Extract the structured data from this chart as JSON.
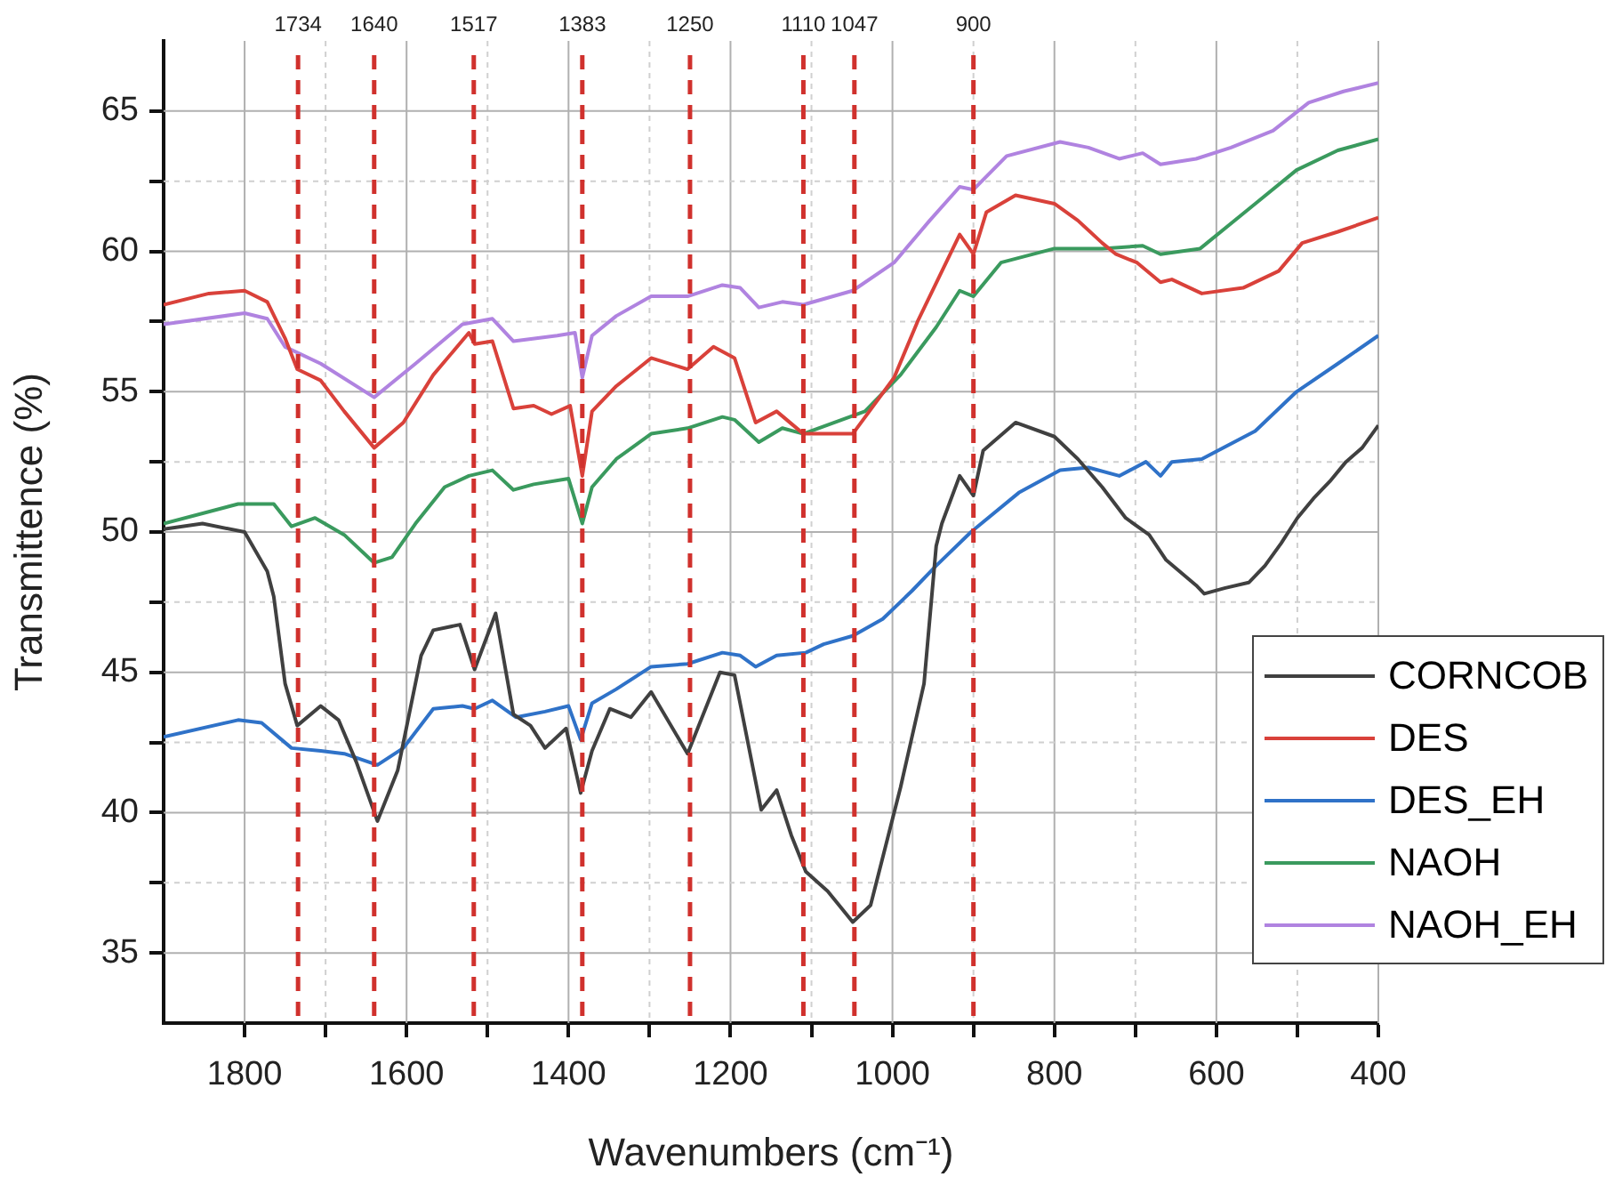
{
  "chart_data": {
    "type": "line",
    "xlabel": "Wavenumbers (cm⁻¹)",
    "ylabel": "Transmittence (%)",
    "xlim": [
      1900,
      400
    ],
    "ylim": [
      32.5,
      67.5
    ],
    "xticks": [
      1800,
      {
        "value": 1700,
        "label": null
      },
      1600,
      {
        "value": 1500,
        "label": null
      },
      1400,
      {
        "value": 1300,
        "label": null
      },
      1200,
      {
        "value": 1100,
        "label": null
      },
      1000,
      {
        "value": 900,
        "label": null
      },
      800,
      {
        "value": 700,
        "label": null
      },
      600,
      {
        "value": 500,
        "label": null
      },
      400
    ],
    "yticks": [
      35,
      {
        "value": 37.5,
        "label": null
      },
      40,
      {
        "value": 42.5,
        "label": null
      },
      45,
      {
        "value": 47.5,
        "label": null
      },
      50,
      {
        "value": 52.5,
        "label": null
      },
      55,
      {
        "value": 57.5,
        "label": null
      },
      60,
      {
        "value": 62.5,
        "label": null
      },
      65
    ],
    "grid": true,
    "legend": "bottom right",
    "line_style": "solid",
    "ref_lines": [
      {
        "axis": "x",
        "value": 1734,
        "label": "1734",
        "color": "#d0312d",
        "line_style": "dashed"
      },
      {
        "axis": "x",
        "value": 1640,
        "label": "1640",
        "color": "#d0312d",
        "line_style": "dashed"
      },
      {
        "axis": "x",
        "value": 1517,
        "label": "1517",
        "color": "#d0312d",
        "line_style": "dashed"
      },
      {
        "axis": "x",
        "value": 1383,
        "label": "1383",
        "color": "#d0312d",
        "line_style": "dashed"
      },
      {
        "axis": "x",
        "value": 1250,
        "label": "1250",
        "color": "#d0312d",
        "line_style": "dashed"
      },
      {
        "axis": "x",
        "value": 1110,
        "label": "1110",
        "color": "#d0312d",
        "line_style": "dashed"
      },
      {
        "axis": "x",
        "value": 1047,
        "label": "1047",
        "color": "#d0312d",
        "line_style": "dashed"
      },
      {
        "axis": "x",
        "value": 900,
        "label": "900",
        "color": "#d0312d",
        "line_style": "dashed"
      }
    ],
    "series": [
      {
        "name": "CORNCOB",
        "color": "#404040",
        "x": [
          1900,
          1852,
          1800,
          1772,
          1764,
          1750,
          1735,
          1706,
          1684,
          1662,
          1636,
          1618,
          1611,
          1582,
          1567,
          1534,
          1516,
          1490,
          1468,
          1447,
          1429,
          1403,
          1385,
          1371,
          1349,
          1323,
          1298,
          1253,
          1213,
          1195,
          1162,
          1143,
          1125,
          1107,
          1080,
          1049,
          1027,
          990,
          961,
          946,
          939,
          917,
          900,
          888,
          848,
          800,
          771,
          741,
          712,
          683,
          662,
          625,
          615,
          590,
          560,
          540,
          520,
          500,
          480,
          460,
          440,
          420,
          400
        ],
        "values": [
          50.1,
          50.3,
          50.0,
          48.6,
          47.7,
          44.6,
          43.1,
          43.8,
          43.3,
          41.8,
          39.7,
          41.0,
          41.5,
          45.6,
          46.5,
          46.7,
          45.1,
          47.1,
          43.5,
          43.1,
          42.3,
          43.0,
          40.7,
          42.2,
          43.7,
          43.4,
          44.3,
          42.1,
          45.0,
          44.9,
          40.1,
          40.8,
          39.2,
          37.9,
          37.2,
          36.1,
          36.7,
          40.9,
          44.6,
          49.5,
          50.3,
          52.0,
          51.3,
          52.9,
          53.9,
          53.4,
          52.6,
          51.6,
          50.5,
          49.9,
          49.0,
          48.1,
          47.8,
          48.0,
          48.2,
          48.8,
          49.6,
          50.5,
          51.2,
          51.8,
          52.5,
          53.0,
          53.8
        ]
      },
      {
        "name": "DES",
        "color": "#d9413a",
        "x": [
          1900,
          1844,
          1800,
          1772,
          1750,
          1735,
          1706,
          1677,
          1640,
          1604,
          1567,
          1523,
          1516,
          1494,
          1468,
          1443,
          1421,
          1398,
          1383,
          1371,
          1341,
          1298,
          1253,
          1221,
          1195,
          1169,
          1143,
          1110,
          1049,
          998,
          969,
          917,
          900,
          884,
          848,
          800,
          771,
          741,
          724,
          698,
          669,
          655,
          618,
          567,
          523,
          494,
          450,
          400
        ],
        "values": [
          58.1,
          58.5,
          58.6,
          58.2,
          56.9,
          55.8,
          55.4,
          54.3,
          53.0,
          53.9,
          55.6,
          57.1,
          56.7,
          56.8,
          54.4,
          54.5,
          54.2,
          54.5,
          52.0,
          54.3,
          55.2,
          56.2,
          55.8,
          56.6,
          56.2,
          53.9,
          54.3,
          53.5,
          53.5,
          55.5,
          57.5,
          60.6,
          59.9,
          61.4,
          62.0,
          61.7,
          61.1,
          60.3,
          59.9,
          59.6,
          58.9,
          59.0,
          58.5,
          58.7,
          59.3,
          60.3,
          60.7,
          61.2
        ]
      },
      {
        "name": "DES_EH",
        "color": "#2f72c8",
        "x": [
          1900,
          1808,
          1779,
          1742,
          1706,
          1677,
          1636,
          1604,
          1567,
          1531,
          1516,
          1494,
          1465,
          1429,
          1400,
          1385,
          1371,
          1341,
          1298,
          1253,
          1210,
          1188,
          1169,
          1143,
          1107,
          1085,
          1049,
          1012,
          976,
          946,
          903,
          844,
          793,
          758,
          720,
          687,
          669,
          655,
          618,
          552,
          501,
          450,
          400
        ],
        "values": [
          42.7,
          43.3,
          43.2,
          42.3,
          42.2,
          42.1,
          41.7,
          42.3,
          43.7,
          43.8,
          43.7,
          44.0,
          43.4,
          43.6,
          43.8,
          42.6,
          43.9,
          44.4,
          45.2,
          45.3,
          45.7,
          45.6,
          45.2,
          45.6,
          45.7,
          46.0,
          46.3,
          46.9,
          47.9,
          48.8,
          50.0,
          51.4,
          52.2,
          52.3,
          52.0,
          52.5,
          52.0,
          52.5,
          52.6,
          53.6,
          55.0,
          56.0,
          57.0
        ]
      },
      {
        "name": "NAOH",
        "color": "#3a9a5e",
        "x": [
          1900,
          1808,
          1764,
          1742,
          1713,
          1677,
          1640,
          1618,
          1589,
          1553,
          1523,
          1494,
          1468,
          1443,
          1400,
          1383,
          1371,
          1341,
          1298,
          1253,
          1210,
          1195,
          1165,
          1136,
          1110,
          1034,
          990,
          946,
          917,
          900,
          866,
          800,
          741,
          691,
          669,
          620,
          552,
          501,
          450,
          400
        ],
        "values": [
          50.3,
          51.0,
          51.0,
          50.2,
          50.5,
          49.9,
          48.9,
          49.1,
          50.3,
          51.6,
          52.0,
          52.2,
          51.5,
          51.7,
          51.9,
          50.3,
          51.6,
          52.6,
          53.5,
          53.7,
          54.1,
          54.0,
          53.2,
          53.7,
          53.5,
          54.3,
          55.6,
          57.3,
          58.6,
          58.4,
          59.6,
          60.1,
          60.1,
          60.2,
          59.9,
          60.1,
          61.7,
          62.9,
          63.6,
          64.0
        ]
      },
      {
        "name": "NAOH_EH",
        "color": "#b083e0",
        "x": [
          1900,
          1800,
          1772,
          1750,
          1706,
          1640,
          1589,
          1531,
          1494,
          1468,
          1414,
          1392,
          1383,
          1371,
          1341,
          1298,
          1253,
          1210,
          1188,
          1165,
          1136,
          1110,
          1049,
          998,
          954,
          917,
          900,
          859,
          793,
          758,
          720,
          691,
          669,
          625,
          582,
          530,
          486,
          443,
          400
        ],
        "values": [
          57.4,
          57.8,
          57.6,
          56.6,
          56.0,
          54.8,
          56.0,
          57.4,
          57.6,
          56.8,
          57.0,
          57.1,
          55.5,
          57.0,
          57.7,
          58.4,
          58.4,
          58.8,
          58.7,
          58.0,
          58.2,
          58.1,
          58.6,
          59.6,
          61.1,
          62.3,
          62.2,
          63.4,
          63.9,
          63.7,
          63.3,
          63.5,
          63.1,
          63.3,
          63.7,
          64.3,
          65.3,
          65.7,
          66.0
        ]
      }
    ]
  }
}
